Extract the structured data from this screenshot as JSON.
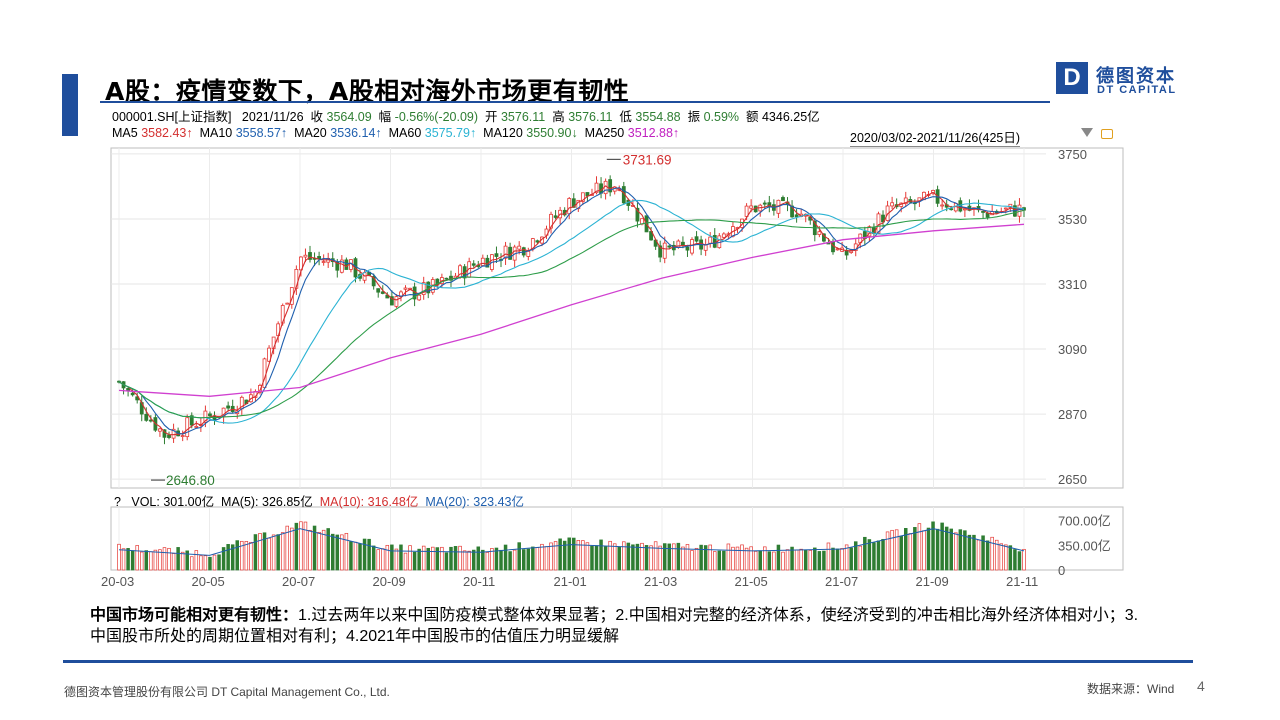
{
  "slide": {
    "title": "A股：疫情变数下，A股相对海外市场更有韧性",
    "logo": {
      "mark": "D",
      "cn": "德图资本",
      "en": "DT CAPITAL"
    },
    "description_bold": "中国市场可能相对更有韧性：",
    "description_text": "1.过去两年以来中国防疫模式整体效果显著；2.中国相对完整的经济体系，使经济受到的冲击相比海外经济体相对小；3.中国股市所处的周期位置相对有利；4.2021年中国股市的估值压力明显缓解",
    "footer_company": "德图资本管理股份有限公司 DT Capital Management Co., Ltd.",
    "footer_source": "数据来源：Wind",
    "page_number": "4"
  },
  "quote": {
    "code": "000001.SH[上证指数]",
    "date": "2021/11/26",
    "close_label": "收",
    "close": "3564.09",
    "change_label": "幅",
    "change": "-0.56%(-20.09)",
    "open_label": "开",
    "open": "3576.11",
    "high_label": "高",
    "high": "3576.11",
    "low_label": "低",
    "low": "3554.88",
    "amp_label": "振",
    "amp": "0.59%",
    "amount_label": "额",
    "amount": "4346.25亿"
  },
  "ma_legend": [
    {
      "label": "MA5",
      "value": "3582.43↑",
      "color": "#d32f2f"
    },
    {
      "label": "MA10",
      "value": "3558.57↑",
      "color": "#1f5fae"
    },
    {
      "label": "MA20",
      "value": "3536.14↑",
      "color": "#1f5fae"
    },
    {
      "label": "MA60",
      "value": "3575.79↑",
      "color": "#2bb3d3"
    },
    {
      "label": "MA120",
      "value": "3550.90↓",
      "color": "#2e7d32"
    },
    {
      "label": "MA250",
      "value": "3512.88↑",
      "color": "#c020c0"
    }
  ],
  "date_range": "2020/03/02-2021/11/26(425日)",
  "volume_legend": {
    "question": "?",
    "vol": "VOL: 301.00亿",
    "ma5": "MA(5): 326.85亿",
    "ma10": "MA(10): 316.48亿",
    "ma20": "MA(20): 323.43亿"
  },
  "chart_data": {
    "type": "line",
    "title": "",
    "price_axis": {
      "ticks": [
        3750,
        3530,
        3310,
        3090,
        2870,
        2650
      ],
      "ylim": [
        2620,
        3770
      ]
    },
    "volume_axis": {
      "ticks": [
        "700.00亿",
        "350.00亿",
        "0"
      ],
      "ylim": [
        0,
        850
      ]
    },
    "x_tick_labels": [
      "20-03",
      "20-05",
      "20-07",
      "20-09",
      "20-11",
      "21-01",
      "21-03",
      "21-05",
      "21-07",
      "21-09",
      "21-11"
    ],
    "annotations": [
      {
        "text": "3731.69",
        "value": 3731.69,
        "date": "2021-02"
      },
      {
        "text": "2646.80",
        "value": 2646.8,
        "date": "2020-03"
      }
    ],
    "price_series": [
      {
        "date": "2020-03",
        "value": 2980
      },
      {
        "date": "2020-04",
        "value": 2800
      },
      {
        "date": "2020-05",
        "value": 2860
      },
      {
        "date": "2020-06",
        "value": 2940
      },
      {
        "date": "2020-07",
        "value": 3400
      },
      {
        "date": "2020-08",
        "value": 3380
      },
      {
        "date": "2020-09",
        "value": 3260
      },
      {
        "date": "2020-10",
        "value": 3300
      },
      {
        "date": "2020-11",
        "value": 3390
      },
      {
        "date": "2020-12",
        "value": 3440
      },
      {
        "date": "2021-01",
        "value": 3590
      },
      {
        "date": "2021-02",
        "value": 3650
      },
      {
        "date": "2021-03",
        "value": 3420
      },
      {
        "date": "2021-04",
        "value": 3440
      },
      {
        "date": "2021-05",
        "value": 3570
      },
      {
        "date": "2021-06",
        "value": 3560
      },
      {
        "date": "2021-07",
        "value": 3400
      },
      {
        "date": "2021-08",
        "value": 3560
      },
      {
        "date": "2021-09",
        "value": 3600
      },
      {
        "date": "2021-10",
        "value": 3550
      },
      {
        "date": "2021-11",
        "value": 3564
      }
    ],
    "ma250_series": [
      {
        "date": "2020-03",
        "value": 2950
      },
      {
        "date": "2020-05",
        "value": 2930
      },
      {
        "date": "2020-07",
        "value": 2960
      },
      {
        "date": "2020-09",
        "value": 3060
      },
      {
        "date": "2020-11",
        "value": 3140
      },
      {
        "date": "2021-01",
        "value": 3240
      },
      {
        "date": "2021-03",
        "value": 3330
      },
      {
        "date": "2021-05",
        "value": 3400
      },
      {
        "date": "2021-07",
        "value": 3460
      },
      {
        "date": "2021-09",
        "value": 3490
      },
      {
        "date": "2021-11",
        "value": 3512
      }
    ],
    "volume_series": [
      {
        "date": "2020-03",
        "value": 320
      },
      {
        "date": "2020-05",
        "value": 230
      },
      {
        "date": "2020-07",
        "value": 650
      },
      {
        "date": "2020-09",
        "value": 300
      },
      {
        "date": "2020-11",
        "value": 280
      },
      {
        "date": "2021-01",
        "value": 400
      },
      {
        "date": "2021-03",
        "value": 340
      },
      {
        "date": "2021-05",
        "value": 300
      },
      {
        "date": "2021-07",
        "value": 330
      },
      {
        "date": "2021-09",
        "value": 650
      },
      {
        "date": "2021-11",
        "value": 301
      }
    ],
    "colors": {
      "up": "#e53935",
      "down": "#2e7d32",
      "ma5": "#d32f2f",
      "ma10": "#1f5fae",
      "ma60": "#2bb3d3",
      "ma120": "#2e9d4a",
      "ma250": "#d040d0"
    }
  }
}
